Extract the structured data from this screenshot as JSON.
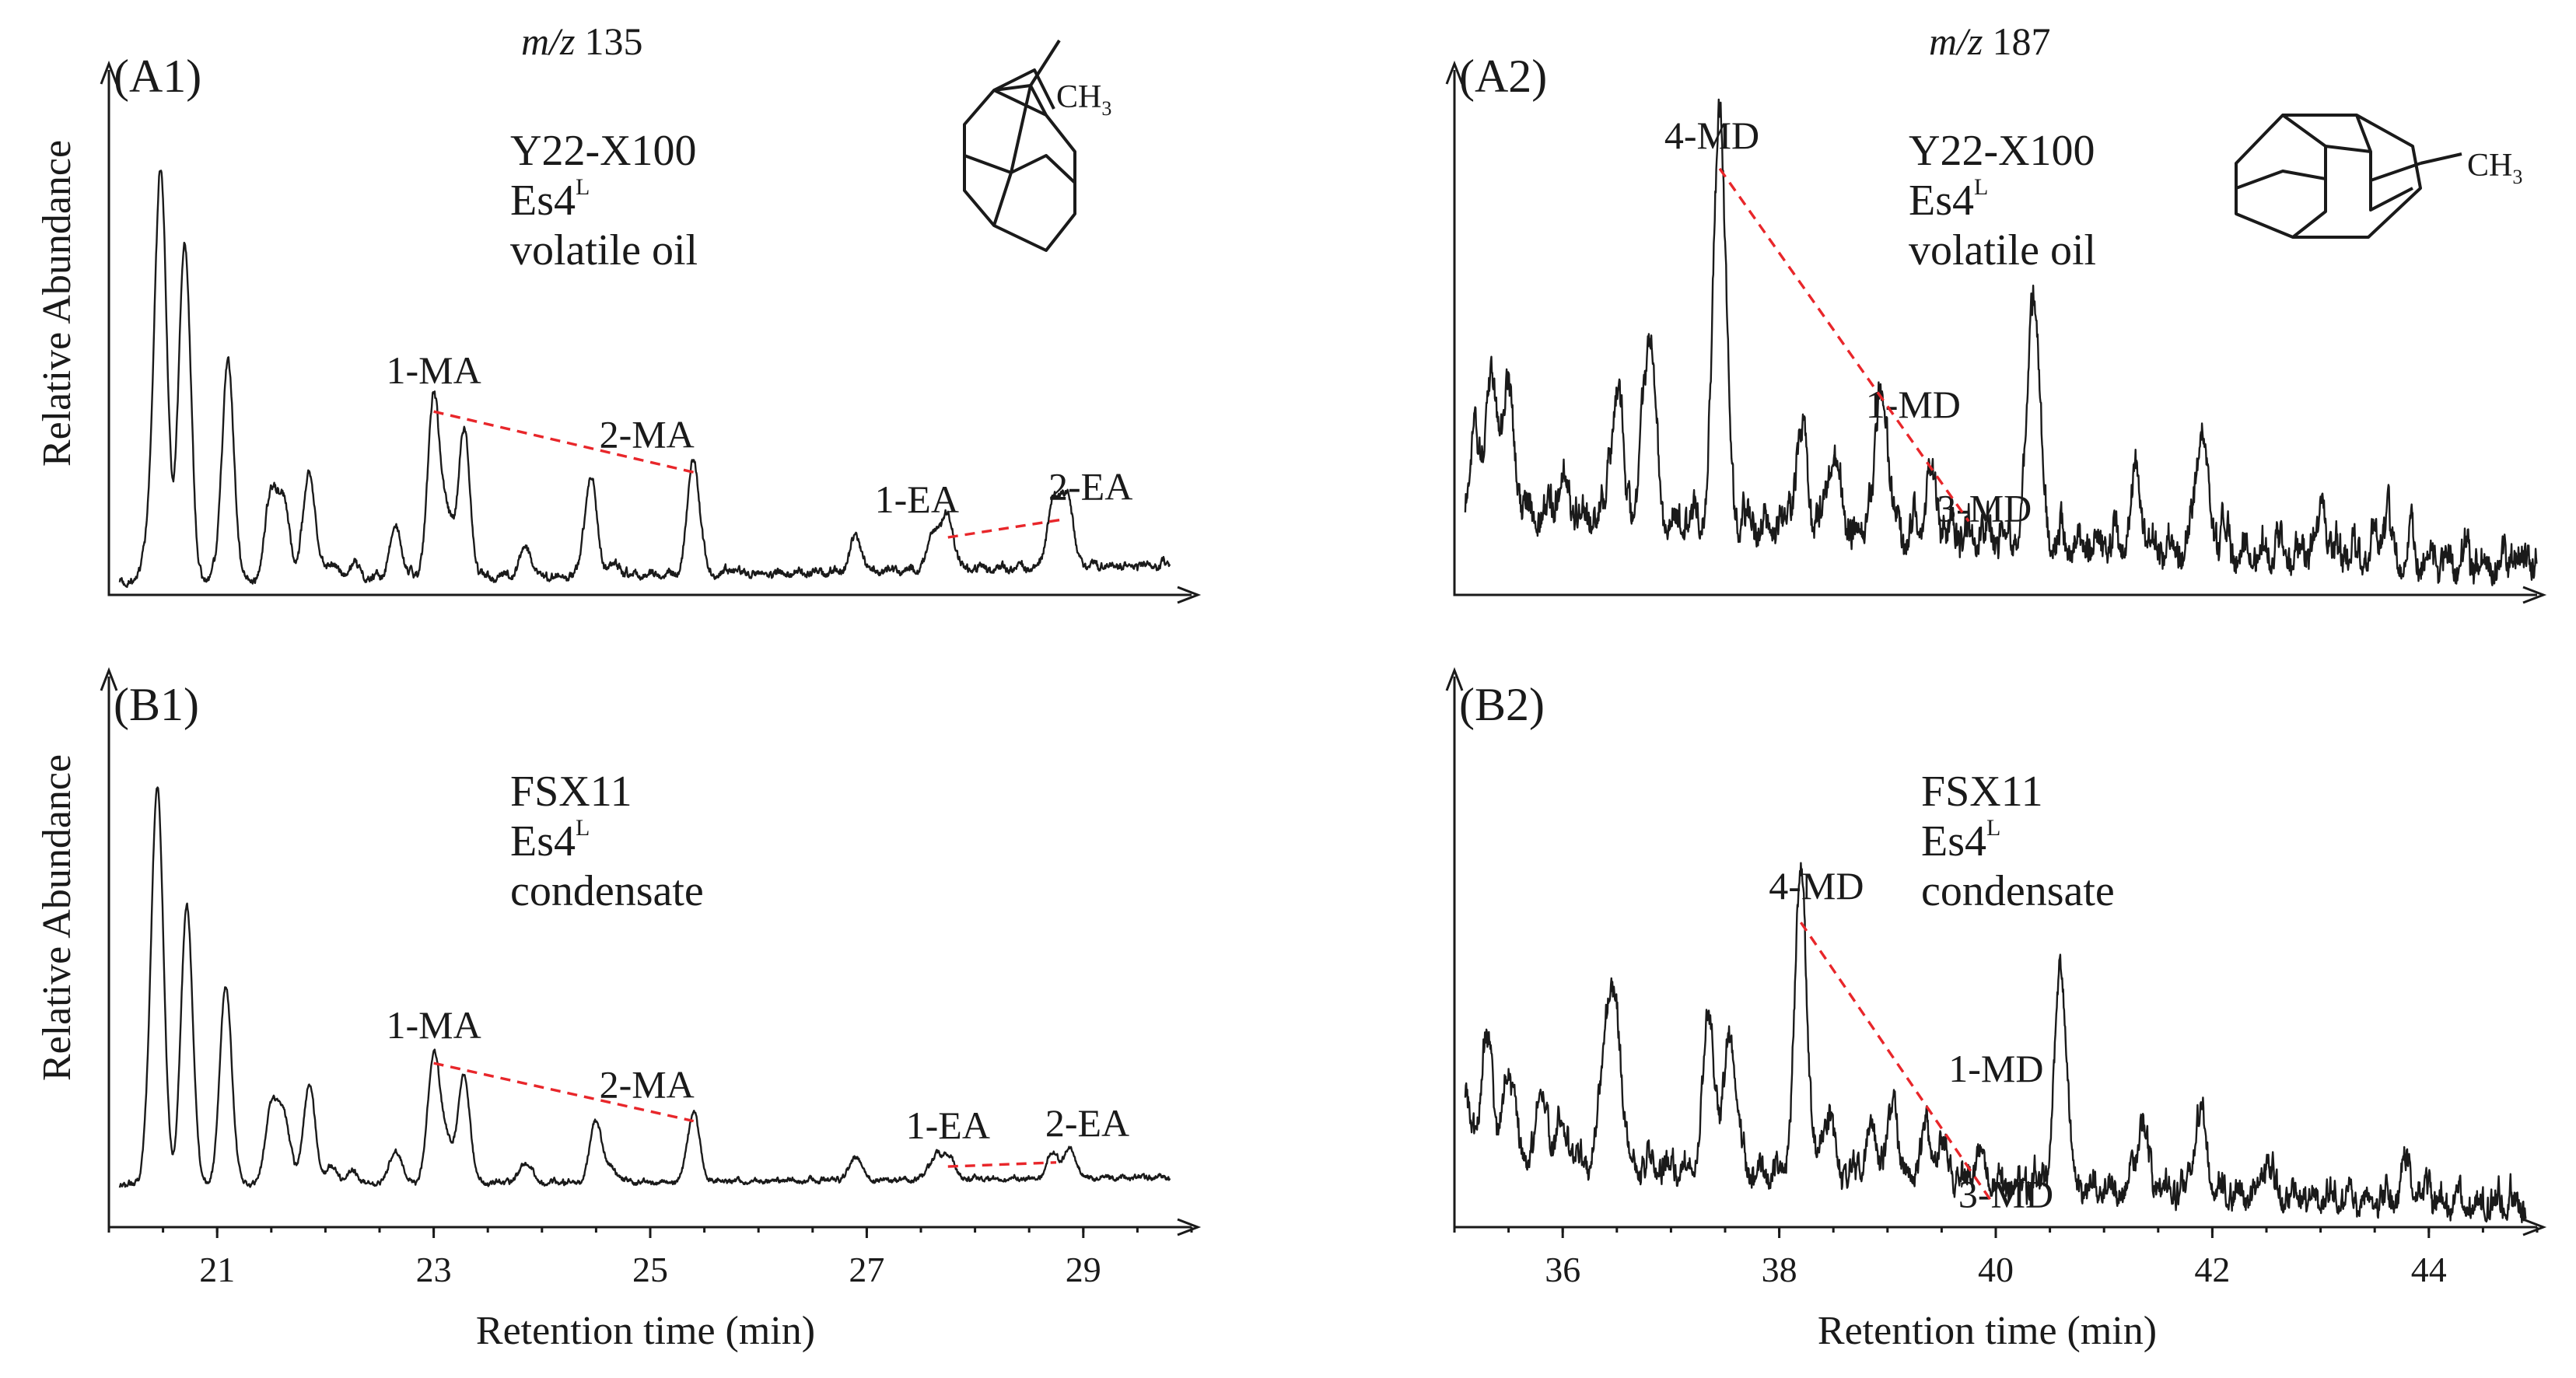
{
  "colors": {
    "trace": "#1a1a1a",
    "ratio_line": "#e8262a",
    "background": "#ffffff"
  },
  "header": {
    "mz_left_italic": "m/z",
    "mz_left_value": "135",
    "mz_right_italic": "m/z",
    "mz_right_value": "187"
  },
  "structures": {
    "methyladamantane_label": "CH",
    "methyladamantane_sub": "3",
    "methyldiamantane_label": "CH",
    "methyldiamantane_sub": "3"
  },
  "axes": {
    "ylabel": "Relative Abundance",
    "xlabel_left": "Retention time (min)",
    "xlabel_right": "Retention time (min)",
    "xticks_left": [
      "21",
      "23",
      "25",
      "27",
      "29"
    ],
    "xticks_right": [
      "36",
      "38",
      "40",
      "42",
      "44"
    ]
  },
  "chart_data": [
    {
      "id": "A1",
      "type": "line",
      "panel_label": "(A1)",
      "sample": "Y22-X100",
      "formation": "Es4",
      "formation_sup": "L",
      "fluid": "volatile oil",
      "xlim": [
        20,
        30
      ],
      "ylim": [
        0,
        1
      ],
      "xlabel": "",
      "ylabel": "Relative Abundance",
      "peaks": [
        [
          20.38,
          0.11
        ],
        [
          20.48,
          0.93
        ],
        [
          20.7,
          0.78
        ],
        [
          21.1,
          0.5
        ],
        [
          21.5,
          0.2
        ],
        [
          21.62,
          0.17
        ],
        [
          21.85,
          0.25
        ],
        [
          22.05,
          0.04
        ],
        [
          22.25,
          0.03
        ],
        [
          22.65,
          0.12
        ],
        [
          23.0,
          0.41
        ],
        [
          23.12,
          0.13
        ],
        [
          23.28,
          0.33
        ],
        [
          23.85,
          0.07
        ],
        [
          24.45,
          0.23
        ],
        [
          24.65,
          0.025
        ],
        [
          25.4,
          0.27
        ],
        [
          26.9,
          0.08
        ],
        [
          27.62,
          0.09
        ],
        [
          27.75,
          0.12
        ],
        [
          28.72,
          0.15
        ],
        [
          28.85,
          0.16
        ]
      ],
      "baseline": [
        [
          20.0,
          0.01
        ],
        [
          26.0,
          0.03
        ],
        [
          29.8,
          0.05
        ]
      ],
      "noise_amp": 0.018,
      "x_end": 29.8,
      "labels": [
        {
          "text": "1-MA",
          "x": 23.0,
          "y": 0.41
        },
        {
          "text": "2-MA",
          "x": 25.4,
          "y": 0.27
        },
        {
          "text": "1-EA",
          "x": 27.75,
          "y": 0.12
        },
        {
          "text": "2-EA",
          "x": 28.78,
          "y": 0.16
        }
      ],
      "ratio_lines": [
        [
          "1-MA",
          "2-MA"
        ],
        [
          "1-EA",
          "2-EA"
        ]
      ]
    },
    {
      "id": "A2",
      "type": "line",
      "panel_label": "(A2)",
      "sample": "Y22-X100",
      "formation": "Es4",
      "formation_sup": "L",
      "fluid": "volatile oil",
      "xlim": [
        35,
        45
      ],
      "ylim": [
        0,
        1
      ],
      "xlabel": "",
      "ylabel": "",
      "peaks": [
        [
          35.2,
          0.15
        ],
        [
          35.35,
          0.28
        ],
        [
          35.5,
          0.27
        ],
        [
          36.0,
          0.08
        ],
        [
          36.5,
          0.28
        ],
        [
          36.8,
          0.44
        ],
        [
          37.45,
          0.97
        ],
        [
          38.2,
          0.2
        ],
        [
          38.5,
          0.18
        ],
        [
          38.95,
          0.33
        ],
        [
          39.4,
          0.13
        ],
        [
          40.35,
          0.58
        ],
        [
          41.3,
          0.14
        ],
        [
          41.9,
          0.28
        ],
        [
          43.0,
          0.06
        ],
        [
          43.6,
          0.08
        ]
      ],
      "baseline": [
        [
          35.0,
          0.16
        ],
        [
          38.0,
          0.12
        ],
        [
          41.0,
          0.08
        ],
        [
          45.0,
          0.03
        ]
      ],
      "noise_amp": 0.08,
      "x_end": 45.0,
      "labels": [
        {
          "text": "4-MD",
          "x": 37.45,
          "y": 0.97
        },
        {
          "text": "1-MD",
          "x": 38.95,
          "y": 0.33
        },
        {
          "text": "3-MD",
          "x": 39.75,
          "y": 0.16
        }
      ],
      "ratio_lines": [
        [
          "4-MD",
          "3-MD"
        ]
      ]
    },
    {
      "id": "B1",
      "type": "line",
      "panel_label": "(B1)",
      "sample": "FSX11",
      "formation": "Es4",
      "formation_sup": "L",
      "fluid": "condensate",
      "xlim": [
        20,
        30
      ],
      "ylim": [
        0,
        1
      ],
      "xlabel": "Retention time (min)",
      "ylabel": "Relative Abundance",
      "peaks": [
        [
          20.38,
          0.08
        ],
        [
          20.45,
          0.93
        ],
        [
          20.72,
          0.67
        ],
        [
          21.08,
          0.48
        ],
        [
          21.5,
          0.19
        ],
        [
          21.62,
          0.16
        ],
        [
          21.85,
          0.24
        ],
        [
          22.05,
          0.04
        ],
        [
          22.25,
          0.03
        ],
        [
          22.65,
          0.08
        ],
        [
          23.0,
          0.31
        ],
        [
          23.12,
          0.1
        ],
        [
          23.28,
          0.26
        ],
        [
          23.85,
          0.05
        ],
        [
          24.5,
          0.15
        ],
        [
          24.65,
          0.03
        ],
        [
          25.4,
          0.17
        ],
        [
          26.9,
          0.06
        ],
        [
          27.62,
          0.05
        ],
        [
          27.75,
          0.06
        ],
        [
          28.72,
          0.06
        ],
        [
          28.88,
          0.07
        ]
      ],
      "baseline": [
        [
          20.0,
          0.01
        ],
        [
          26.0,
          0.02
        ],
        [
          29.8,
          0.03
        ]
      ],
      "noise_amp": 0.012,
      "x_end": 29.8,
      "labels": [
        {
          "text": "1-MA",
          "x": 23.0,
          "y": 0.31
        },
        {
          "text": "2-MA",
          "x": 25.4,
          "y": 0.17
        },
        {
          "text": "1-EA",
          "x": 27.75,
          "y": 0.06
        },
        {
          "text": "2-EA",
          "x": 28.75,
          "y": 0.07
        }
      ],
      "ratio_lines": [
        [
          "1-MA",
          "2-MA"
        ],
        [
          "1-EA",
          "2-EA"
        ]
      ]
    },
    {
      "id": "B2",
      "type": "line",
      "panel_label": "(B2)",
      "sample": "FSX11",
      "formation": "Es4",
      "formation_sup": "L",
      "fluid": "condensate",
      "xlim": [
        35,
        45
      ],
      "ylim": [
        0,
        1
      ],
      "xlabel": "Retention time (min)",
      "ylabel": "",
      "peaks": [
        [
          35.1,
          0.14
        ],
        [
          35.3,
          0.28
        ],
        [
          35.5,
          0.2
        ],
        [
          35.8,
          0.16
        ],
        [
          36.0,
          0.1
        ],
        [
          36.4,
          0.32
        ],
        [
          36.5,
          0.3
        ],
        [
          37.35,
          0.36
        ],
        [
          37.55,
          0.33
        ],
        [
          38.2,
          0.72
        ],
        [
          38.45,
          0.14
        ],
        [
          38.85,
          0.12
        ],
        [
          39.05,
          0.16
        ],
        [
          39.35,
          0.1
        ],
        [
          39.5,
          0.08
        ],
        [
          39.85,
          0.07
        ],
        [
          40.6,
          0.53
        ],
        [
          41.35,
          0.15
        ],
        [
          41.9,
          0.18
        ],
        [
          42.5,
          0.05
        ],
        [
          43.8,
          0.08
        ]
      ],
      "baseline": [
        [
          35.0,
          0.13
        ],
        [
          38.0,
          0.1
        ],
        [
          41.0,
          0.06
        ],
        [
          45.0,
          0.02
        ]
      ],
      "noise_amp": 0.07,
      "x_end": 44.9,
      "labels": [
        {
          "text": "4-MD",
          "x": 38.2,
          "y": 0.72
        },
        {
          "text": "1-MD",
          "x": 39.5,
          "y": 0.23
        },
        {
          "text": "3-MD",
          "x": 39.95,
          "y": 0.06
        }
      ],
      "ratio_lines": [
        [
          "4-MD",
          "3-MD"
        ]
      ]
    }
  ]
}
